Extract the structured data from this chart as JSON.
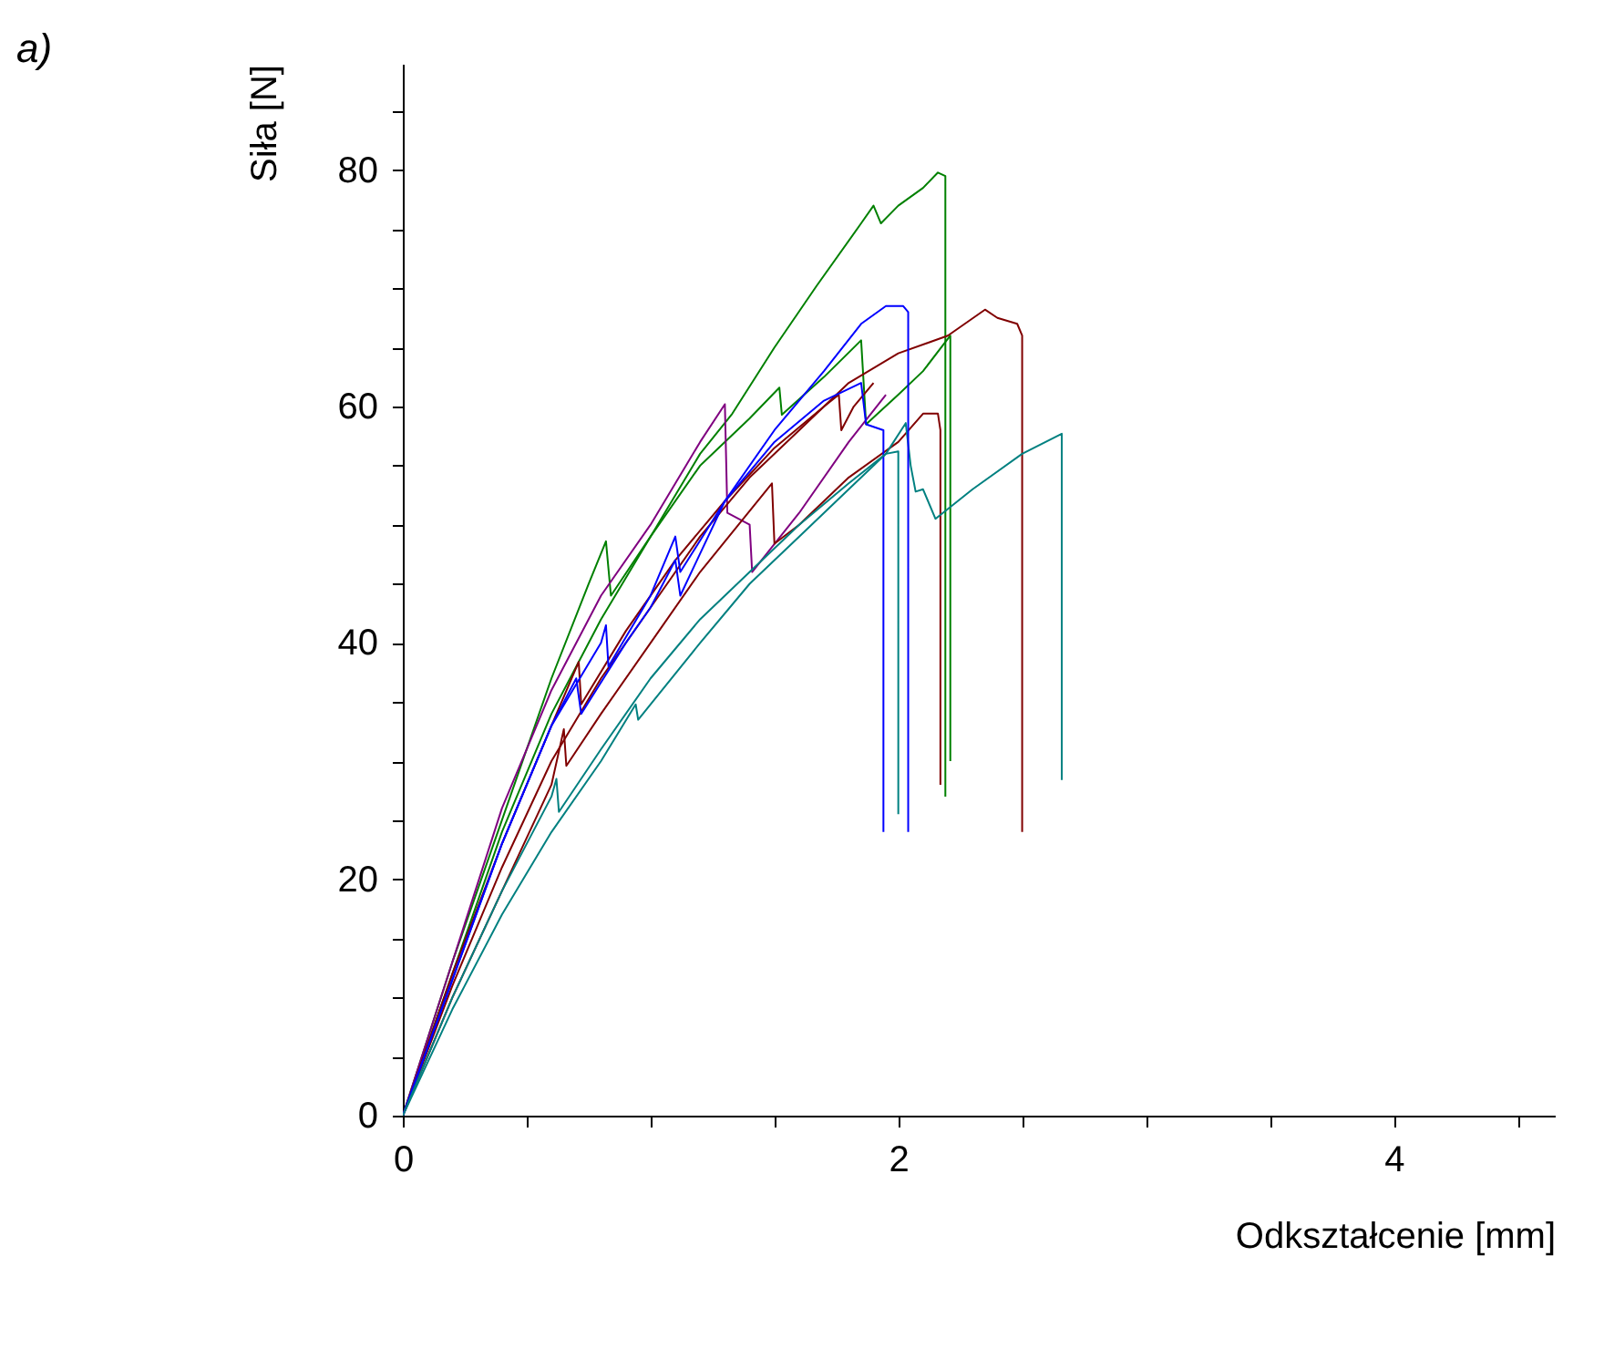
{
  "chart_data": {
    "type": "line",
    "xlabel": "Odkształcenie [mm]",
    "ylabel": "Siła [N]",
    "annotations": [
      "a)"
    ],
    "xlim": [
      0,
      4.65
    ],
    "ylim": [
      0,
      89
    ],
    "xticks": [
      0,
      {
        "value": 0.5,
        "label": null
      },
      {
        "value": 1,
        "label": null
      },
      {
        "value": 1.5,
        "label": null
      },
      2,
      {
        "value": 2.5,
        "label": null
      },
      {
        "value": 3,
        "label": null
      },
      {
        "value": 3.5,
        "label": null
      },
      4,
      {
        "value": 4.5,
        "label": null
      }
    ],
    "yticks": [
      0,
      {
        "value": 5,
        "label": null
      },
      {
        "value": 10,
        "label": null
      },
      {
        "value": 15,
        "label": null
      },
      20,
      {
        "value": 25,
        "label": null
      },
      {
        "value": 30,
        "label": null
      },
      {
        "value": 35,
        "label": null
      },
      40,
      {
        "value": 45,
        "label": null
      },
      {
        "value": 50,
        "label": null
      },
      {
        "value": 55,
        "label": null
      },
      60,
      {
        "value": 65,
        "label": null
      },
      {
        "value": 70,
        "label": null
      },
      {
        "value": 75,
        "label": null
      },
      80,
      {
        "value": 85,
        "label": null
      }
    ],
    "grid": false,
    "legend": false,
    "marker": "none",
    "line_style": "solid",
    "series": [
      {
        "color": "#008000",
        "x": [
          0,
          0.2,
          0.4,
          0.6,
          0.8,
          1.0,
          1.2,
          1.33,
          1.5,
          1.67,
          1.85,
          1.9,
          1.93,
          2.0,
          2.1,
          2.16,
          2.19,
          2.19
        ],
        "values": [
          0,
          12,
          24,
          34,
          42,
          49,
          56,
          59.4,
          65,
          70.2,
          75.5,
          77,
          75.5,
          77,
          78.5,
          79.8,
          79.5,
          27
        ]
      },
      {
        "color": "#008000",
        "x": [
          0,
          0.2,
          0.4,
          0.6,
          0.75,
          0.82,
          0.84,
          1.0,
          1.2,
          1.4,
          1.52,
          1.53,
          1.7,
          1.85,
          1.87,
          2.0,
          2.1,
          2.21,
          2.21
        ],
        "values": [
          0,
          13,
          25,
          37,
          45,
          48.6,
          44,
          49,
          55,
          59,
          61.6,
          59.3,
          62.5,
          65.6,
          58.5,
          61,
          63,
          66,
          30
        ]
      },
      {
        "color": "#800080",
        "x": [
          0,
          0.2,
          0.4,
          0.6,
          0.8,
          1.0,
          1.2,
          1.3,
          1.31,
          1.4,
          1.41,
          1.6,
          1.8,
          1.95
        ],
        "values": [
          0,
          13,
          26,
          36,
          44,
          50,
          57,
          60.2,
          51,
          50,
          46,
          51,
          57,
          61
        ]
      },
      {
        "color": "#800000",
        "x": [
          0,
          0.2,
          0.4,
          0.6,
          0.8,
          1.0,
          1.2,
          1.4,
          1.6,
          1.8,
          2.0,
          2.2,
          2.35,
          2.4,
          2.48,
          2.5,
          2.5
        ],
        "values": [
          0,
          11,
          21,
          30,
          37,
          43,
          49,
          54,
          58,
          62,
          64.5,
          66,
          68.2,
          67.5,
          67,
          66,
          24
        ]
      },
      {
        "color": "#800000",
        "x": [
          0,
          0.2,
          0.4,
          0.6,
          0.65,
          0.66,
          0.8,
          1.0,
          1.2,
          1.49,
          1.5,
          1.6,
          1.8,
          2.0,
          2.1,
          2.16,
          2.17,
          2.17
        ],
        "values": [
          0,
          10,
          19,
          28,
          32.7,
          29.6,
          34,
          40,
          46,
          53.5,
          48.4,
          50,
          54,
          57,
          59.4,
          59.4,
          58,
          28
        ]
      },
      {
        "color": "#800000",
        "x": [
          0,
          0.2,
          0.4,
          0.6,
          0.71,
          0.72,
          0.9,
          1.1,
          1.3,
          1.5,
          1.7,
          1.76,
          1.77,
          1.82,
          1.9
        ],
        "values": [
          0,
          12,
          23,
          33,
          38.4,
          34.8,
          41,
          47,
          52,
          56.5,
          60,
          61,
          58,
          60,
          62
        ]
      },
      {
        "color": "#008080",
        "x": [
          0,
          0.2,
          0.4,
          0.6,
          0.8,
          0.94,
          0.95,
          1.2,
          1.4,
          1.6,
          1.8,
          1.95,
          2.03,
          2.05,
          2.07,
          2.1,
          2.15,
          2.3,
          2.5,
          2.66,
          2.66
        ],
        "values": [
          0,
          9,
          17,
          24,
          30,
          34.8,
          33.5,
          40,
          45,
          49,
          53,
          56,
          58.6,
          55,
          52.8,
          53,
          50.5,
          53,
          56,
          57.7,
          28.4
        ]
      },
      {
        "color": "#0000ff",
        "x": [
          0,
          0.4,
          0.6,
          0.7,
          0.72,
          0.9,
          1.0,
          1.1,
          1.12,
          1.3,
          1.5,
          1.7,
          1.85,
          1.95,
          2.02,
          2.04,
          2.04
        ],
        "values": [
          0,
          23,
          33,
          37,
          34,
          40,
          43,
          47,
          44,
          52,
          58,
          63,
          67,
          68.5,
          68.5,
          68,
          24
        ]
      },
      {
        "color": "#0000ff",
        "x": [
          0,
          0.4,
          0.6,
          0.8,
          0.82,
          0.83,
          1.0,
          1.1,
          1.12,
          1.3,
          1.5,
          1.7,
          1.85,
          1.87,
          1.94,
          1.94
        ],
        "values": [
          0,
          23,
          33,
          40,
          41.5,
          38,
          44,
          49,
          46,
          52,
          57,
          60.5,
          62,
          58.5,
          58,
          24
        ]
      },
      {
        "color": "#008080",
        "x": [
          0,
          0.2,
          0.4,
          0.6,
          0.62,
          0.63,
          0.8,
          1.0,
          1.2,
          1.4,
          1.6,
          1.8,
          1.95,
          2.0,
          2.0
        ],
        "values": [
          0,
          10,
          19,
          27,
          28.5,
          25.7,
          31,
          37,
          42,
          46,
          50,
          53.5,
          56,
          56.2,
          25.5
        ]
      }
    ]
  }
}
